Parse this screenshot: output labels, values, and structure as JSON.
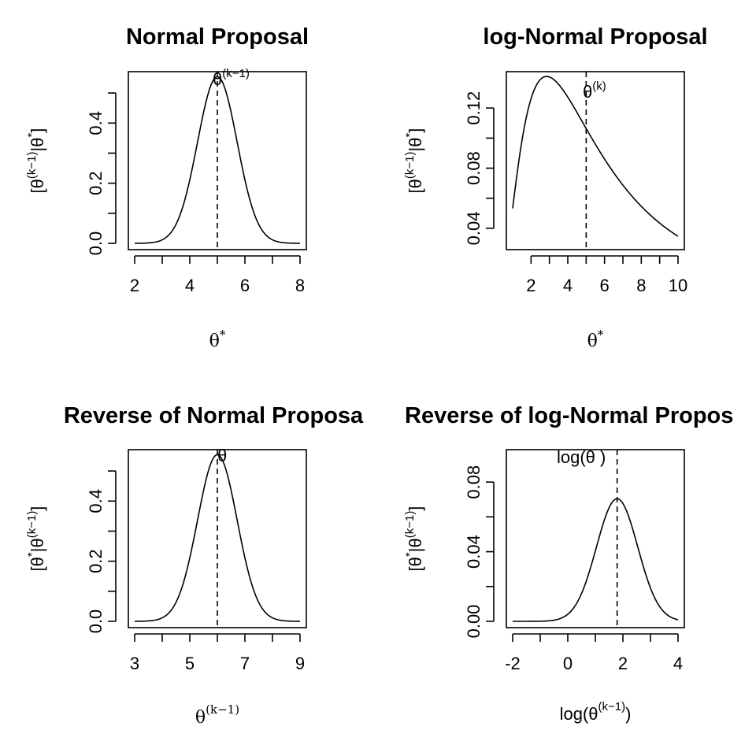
{
  "chart_data": [
    {
      "type": "line",
      "title": "Normal Proposal",
      "xlabel": "θ*",
      "ylabel": "[θ(k−1)|θ*]",
      "xlim": [
        2,
        8
      ],
      "ylim": [
        0,
        0.55
      ],
      "x_major_ticks": [
        2,
        4,
        6,
        8
      ],
      "x_minor_ticks": [
        3,
        5,
        7
      ],
      "y_major_ticks": [
        0.0,
        0.2,
        0.4
      ],
      "y_minor_ticks": [
        0.1,
        0.3,
        0.5
      ],
      "x_tick_labels": [
        "2",
        "4",
        "6",
        "8"
      ],
      "y_tick_labels": [
        "0.0",
        "0.2",
        "0.4"
      ],
      "vline": 5,
      "annotation": "θ(k−1)",
      "curve": {
        "dist": "normal",
        "mean": 5,
        "sd": 0.72,
        "xmin": 2,
        "xmax": 8
      }
    },
    {
      "type": "line",
      "title": "log-Normal Proposal",
      "xlabel": "θ*",
      "ylabel": "[θ(k−1)|θ*]",
      "xlim": [
        1,
        10
      ],
      "ylim": [
        0.03,
        0.14
      ],
      "x_major_ticks": [
        2,
        4,
        6,
        8,
        10
      ],
      "x_minor_ticks": [
        3,
        5,
        7,
        9
      ],
      "y_major_ticks": [
        0.04,
        0.08,
        0.12
      ],
      "y_minor_ticks": [
        0.06,
        0.1
      ],
      "x_tick_labels": [
        "2",
        "4",
        "6",
        "8",
        "10"
      ],
      "y_tick_labels": [
        "0.04",
        "0.08",
        "0.12"
      ],
      "vline": 5,
      "annotation": "θ(k)",
      "curve": {
        "dist": "lognormal",
        "meanlog": 1.609,
        "sdlog": 0.75,
        "xmin": 1,
        "xmax": 10
      }
    },
    {
      "type": "line",
      "title": "Reverse of Normal Proposa",
      "xlabel": "θ(k−1)",
      "ylabel": "[θ*|θ(k−1)]",
      "xlim": [
        3,
        9
      ],
      "ylim": [
        0,
        0.55
      ],
      "x_major_ticks": [
        3,
        5,
        7,
        9
      ],
      "x_minor_ticks": [
        4,
        6,
        8
      ],
      "y_major_ticks": [
        0.0,
        0.2,
        0.4
      ],
      "y_minor_ticks": [
        0.1,
        0.3,
        0.5
      ],
      "x_tick_labels": [
        "3",
        "5",
        "7",
        "9"
      ],
      "y_tick_labels": [
        "0.0",
        "0.2",
        "0.4"
      ],
      "vline": 6,
      "annotation": "θ",
      "curve": {
        "dist": "normal",
        "mean": 6,
        "sd": 0.72,
        "xmin": 3,
        "xmax": 9
      }
    },
    {
      "type": "line",
      "title": "Reverse of log-Normal Propos",
      "xlabel": "log(θ(k−1))",
      "ylabel": "[θ*|θ(k−1)]",
      "xlim": [
        -2,
        4
      ],
      "ylim": [
        0,
        0.095
      ],
      "x_major_ticks": [
        -2,
        0,
        2,
        4
      ],
      "x_minor_ticks": [
        -1,
        1,
        3
      ],
      "y_major_ticks": [
        0.0,
        0.04,
        0.08
      ],
      "y_minor_ticks": [
        0.02,
        0.06
      ],
      "x_tick_labels": [
        "-2",
        "0",
        "2",
        "4"
      ],
      "y_tick_labels": [
        "0.00",
        "0.04",
        "0.08"
      ],
      "vline": 1.79,
      "annotation": "log(θ )",
      "curve": {
        "dist": "normal",
        "mean": 1.79,
        "sd": 0.75,
        "scale": 0.0704,
        "xmin": -2,
        "xmax": 4
      }
    }
  ]
}
